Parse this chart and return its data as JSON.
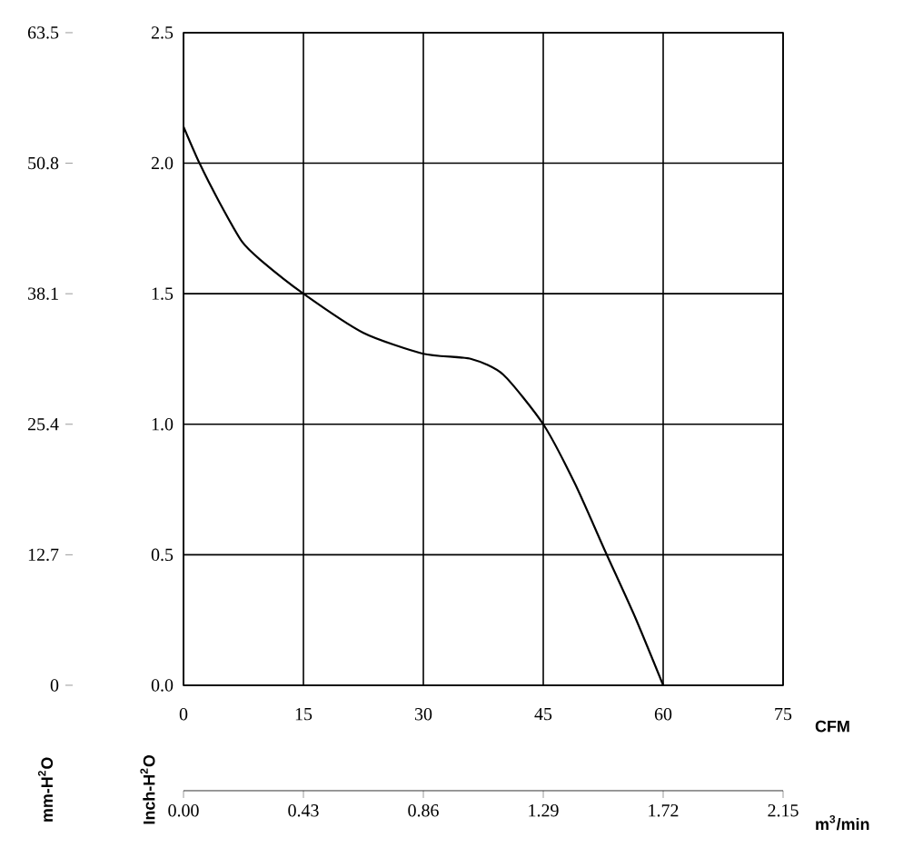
{
  "chart_data": {
    "type": "line",
    "xlabel": "CFM",
    "ylabel": "Inch-H$^{2}$O",
    "y2label": "mm-H$^{2}$O",
    "x2label": "m$^{3}$/min",
    "x": [
      0,
      2,
      4.5,
      7.3,
      9.6,
      15,
      22.5,
      30,
      36,
      40,
      45,
      49,
      52.8,
      56.5,
      60
    ],
    "series": [
      {
        "color": "#000000",
        "values": [
          2.14,
          2.0,
          1.85,
          1.7,
          1.63,
          1.5,
          1.35,
          1.27,
          1.25,
          1.19,
          1.0,
          0.77,
          0.51,
          0.26,
          0
        ]
      }
    ],
    "xlim": [
      0,
      75
    ],
    "xticks": [
      0,
      15,
      30,
      45,
      60,
      75
    ],
    "ylim": [
      0,
      2.5
    ],
    "yticks": [
      {
        "value": 0,
        "label": "0.0"
      },
      0.5,
      {
        "value": 1,
        "label": "1.0"
      },
      1.5,
      {
        "value": 2,
        "label": "2.0"
      },
      2.5
    ],
    "y2lim": [
      0,
      63.5
    ],
    "y2ticks": [
      0,
      12.7,
      25.4,
      38.1,
      50.8,
      63.5
    ],
    "x2lim": [
      0,
      2.15
    ],
    "x2ticks": [
      {
        "value": 0,
        "label": "0.00"
      },
      0.43,
      0.86,
      1.29,
      1.72,
      2.15
    ],
    "grid": true
  }
}
